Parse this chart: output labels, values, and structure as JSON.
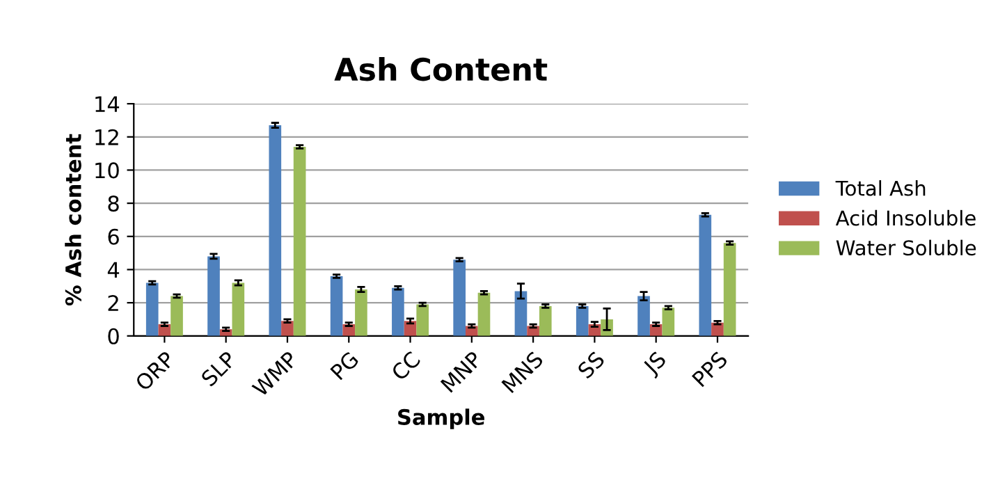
{
  "chart_data": {
    "type": "bar",
    "title": "Ash Content",
    "xlabel": "Sample",
    "ylabel": "% Ash content",
    "categories": [
      "ORP",
      "SLP",
      "WMP",
      "PG",
      "CC",
      "MNP",
      "MNS",
      "SS",
      "JS",
      "PPS"
    ],
    "series": [
      {
        "name": "Total Ash",
        "color": "#4f81bd",
        "values": [
          3.2,
          4.8,
          12.7,
          3.6,
          2.9,
          4.6,
          2.7,
          1.8,
          2.4,
          7.3
        ],
        "errors": [
          0.1,
          0.15,
          0.15,
          0.1,
          0.1,
          0.1,
          0.45,
          0.1,
          0.25,
          0.1
        ]
      },
      {
        "name": "Acid Insoluble",
        "color": "#c0504d",
        "values": [
          0.7,
          0.4,
          0.9,
          0.7,
          0.9,
          0.6,
          0.6,
          0.7,
          0.7,
          0.8
        ],
        "errors": [
          0.1,
          0.1,
          0.1,
          0.1,
          0.15,
          0.1,
          0.1,
          0.15,
          0.1,
          0.1
        ]
      },
      {
        "name": "Water Soluble",
        "color": "#9bbb59",
        "values": [
          2.4,
          3.2,
          11.4,
          2.8,
          1.9,
          2.6,
          1.8,
          1.0,
          1.7,
          5.6
        ],
        "errors": [
          0.1,
          0.15,
          0.1,
          0.15,
          0.1,
          0.1,
          0.1,
          0.65,
          0.1,
          0.1
        ]
      }
    ],
    "ylim": [
      0,
      14
    ],
    "yticks": [
      0,
      2,
      4,
      6,
      8,
      10,
      12,
      14
    ],
    "grid": "y",
    "legend": "right"
  }
}
